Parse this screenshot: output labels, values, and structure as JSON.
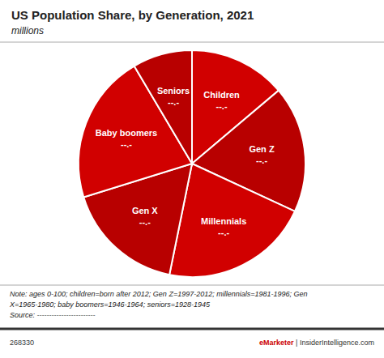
{
  "chart_data": {
    "type": "pie",
    "title": "US Population Share, by Generation, 2021",
    "subtitle": "millions",
    "categories": [
      "Children",
      "Gen Z",
      "Millennials",
      "Gen X",
      "Baby boomers",
      "Seniors"
    ],
    "values": [
      13.0,
      17.0,
      20.0,
      16.0,
      20.0,
      8.0
    ],
    "colors": [
      "#d10000",
      "#b80000",
      "#d10000",
      "#b80000",
      "#d10000",
      "#b80000"
    ],
    "data_labels": true,
    "value_labels": [
      "--.-",
      "--.-",
      "--.-",
      "--.-",
      "--.-",
      "--.-"
    ],
    "notes": [
      "Note: ages 0-100; children=born after 2012; Gen Z=1997-2012; millennials=1981-1996; Gen",
      "X=1965-1980; baby boomers=1946-1964; seniors=1928-1945",
      "Source: ------------------------"
    ],
    "footer_left": "268330",
    "footer_right": [
      "eMarketer",
      " | InsiderIntelligence.com"
    ]
  }
}
